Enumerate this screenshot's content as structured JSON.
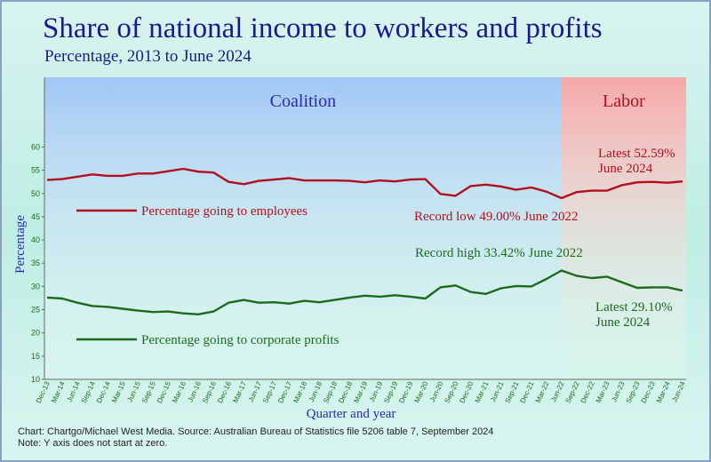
{
  "chart_data": {
    "type": "line",
    "title": "Share of national income to workers and profits",
    "subtitle": "Percentage, 2013 to June 2024",
    "x_label": "Quarter and year",
    "y_label": "Percentage",
    "categories": [
      "Dec-13",
      "Mar-14",
      "Jun-14",
      "Sep-14",
      "Dec-14",
      "Mar-15",
      "Jun-15",
      "Sep-15",
      "Dec-15",
      "Mar-16",
      "Jun-16",
      "Sep-16",
      "Dec-16",
      "Mar-17",
      "Jun-17",
      "Sep-17",
      "Dec-17",
      "Mar-18",
      "Jun-18",
      "Sep-18",
      "Dec-18",
      "Mar-19",
      "Jun-19",
      "Sep-19",
      "Dec-19",
      "Mar-20",
      "Jun-20",
      "Sep-20",
      "Dec-20",
      "Mar-21",
      "Jun-21",
      "Sep-21",
      "Dec-21",
      "Mar-22",
      "Jun-22",
      "Sep-22",
      "Dec-22",
      "Mar-23",
      "Jun-23",
      "Sep-23",
      "Dec-23",
      "Mar-24",
      "Jun-24"
    ],
    "series": [
      {
        "name": "Percentage going to employees",
        "color": "#b0101e",
        "values": [
          52.9,
          53.1,
          53.6,
          54.1,
          53.8,
          53.8,
          54.3,
          54.3,
          54.8,
          55.3,
          54.7,
          54.5,
          52.5,
          52.0,
          52.7,
          53.0,
          53.3,
          52.8,
          52.8,
          52.8,
          52.7,
          52.4,
          52.8,
          52.6,
          53.0,
          53.1,
          49.9,
          49.5,
          51.6,
          51.9,
          51.5,
          50.8,
          51.3,
          50.4,
          49.0,
          50.3,
          50.6,
          50.6,
          51.8,
          52.4,
          52.5,
          52.3,
          52.59
        ]
      },
      {
        "name": "Percentage going to corporate profits",
        "color": "#1d6a1d",
        "values": [
          27.6,
          27.4,
          26.5,
          25.8,
          25.6,
          25.2,
          24.8,
          24.5,
          24.6,
          24.2,
          24.0,
          24.6,
          26.5,
          27.1,
          26.5,
          26.6,
          26.3,
          26.9,
          26.6,
          27.1,
          27.6,
          28.0,
          27.8,
          28.1,
          27.8,
          27.4,
          29.8,
          30.2,
          28.8,
          28.4,
          29.6,
          30.1,
          30.0,
          31.6,
          33.42,
          32.3,
          31.8,
          32.1,
          30.9,
          29.7,
          29.8,
          29.8,
          29.1
        ]
      }
    ],
    "ylim": [
      10,
      75
    ],
    "yticks": [
      10,
      15,
      20,
      25,
      30,
      35,
      40,
      45,
      50,
      55,
      60
    ],
    "grid": false,
    "regions": [
      {
        "label": "Coalition",
        "start": "Dec-13",
        "end": "Jun-22",
        "color": "#9fc6f5"
      },
      {
        "label": "Labor",
        "start": "Jun-22",
        "end": "Jun-24",
        "color": "#f6a8a8"
      }
    ],
    "annotations": [
      {
        "lines": [
          "Latest 52.59%",
          "June 2024"
        ],
        "color": "#b0101e"
      },
      {
        "lines": [
          "Record low 49.00% June 2022"
        ],
        "color": "#b0101e"
      },
      {
        "lines": [
          "Record high 33.42% June 2022"
        ],
        "color": "#1d6a1d"
      },
      {
        "lines": [
          "Latest 29.10%",
          "June 2024"
        ],
        "color": "#1d6a1d"
      }
    ],
    "source": "Chart: Chartgo/Michael West Media. Source: Australian Bureau of Statistics file 5206 table 7, September 2024",
    "note": "Note: Y axis does not start at zero."
  }
}
